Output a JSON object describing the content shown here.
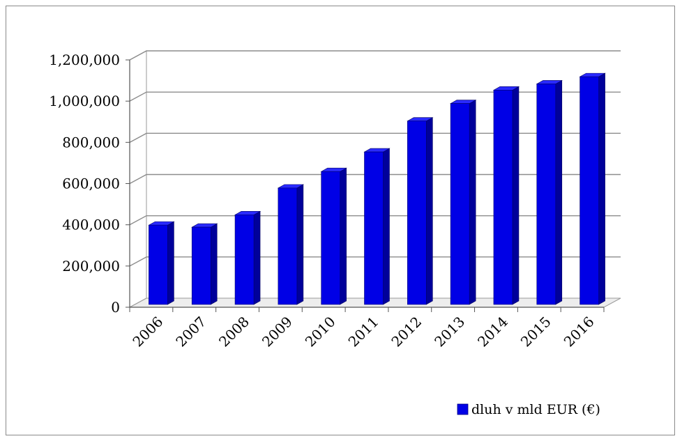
{
  "chart_data": {
    "type": "bar",
    "categories": [
      "2006",
      "2007",
      "2008",
      "2009",
      "2010",
      "2011",
      "2012",
      "2013",
      "2014",
      "2015",
      "2016"
    ],
    "series": [
      {
        "name": "dluh v mld EUR (€)",
        "values": [
          390000,
          380000,
          440000,
          570000,
          650000,
          745000,
          895000,
          980000,
          1045000,
          1075000,
          1110000
        ],
        "color": "#0000e6"
      }
    ],
    "yticks": [
      "0",
      "200,000",
      "400,000",
      "600,000",
      "800,000",
      "1,000,000",
      "1,200,000"
    ],
    "ylim": [
      0,
      1200000
    ],
    "grid": true,
    "legend": "bottom-right",
    "style": "3d-column"
  }
}
